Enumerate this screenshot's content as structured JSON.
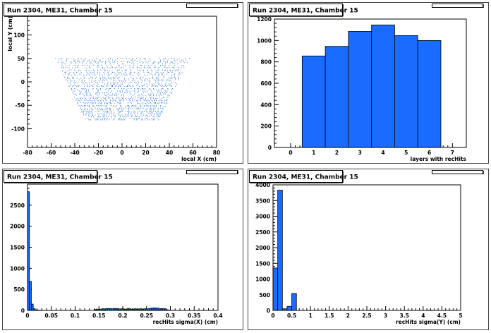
{
  "colors": {
    "fill": "#1a6bff",
    "points": "#2a6fdf",
    "frame": "#000000",
    "background": "#ffffff"
  },
  "chart_data": [
    {
      "type": "scatter",
      "title": "Run 2304, ME31, Chamber 15",
      "xlabel": "local X (cm)",
      "ylabel": "local Y (cm)",
      "xlim": [
        -80,
        80
      ],
      "ylim": [
        -140,
        140
      ],
      "xticks": [
        -80,
        -60,
        -40,
        -20,
        0,
        20,
        40,
        60,
        80
      ],
      "yticks": [
        -100,
        -50,
        0,
        50,
        100
      ],
      "region": {
        "y_top": 52,
        "y_bottom": -82,
        "x_half_width_top": 57,
        "x_half_width_bottom": 31
      },
      "point_rows": 44,
      "points_per_row": 42
    },
    {
      "type": "bar",
      "title": "Run 2304, ME31, Chamber 15",
      "xlabel": "layers with recHits",
      "ylabel": "",
      "xlim": [
        -0.7,
        7.6
      ],
      "ylim": [
        0,
        1200
      ],
      "xticks": [
        0,
        1,
        2,
        3,
        4,
        5,
        6,
        7
      ],
      "yticks": [
        0,
        200,
        400,
        600,
        800,
        1000,
        1200
      ],
      "categories": [
        1,
        2,
        3,
        4,
        5,
        6
      ],
      "bin_width": 1,
      "values": [
        855,
        945,
        1085,
        1145,
        1045,
        1000
      ]
    },
    {
      "type": "bar",
      "title": "Run 2304, ME31, Chamber 15",
      "xlabel": "recHits sigma(X) (cm)",
      "ylabel": "",
      "xlim": [
        0,
        0.4
      ],
      "ylim": [
        0,
        3000
      ],
      "xticks": [
        0,
        0.05,
        0.1,
        0.15,
        0.2,
        0.25,
        0.3,
        0.35,
        0.4
      ],
      "xtick_labels": [
        "0",
        "0.05",
        "0.1",
        "0.15",
        "0.2",
        "0.25",
        "0.3",
        "0.35",
        "0.4"
      ],
      "yticks": [
        0,
        500,
        1000,
        1500,
        2000,
        2500
      ],
      "bin_start": 0,
      "bin_width": 0.004,
      "values": [
        2820,
        690,
        150,
        40,
        15,
        8,
        5,
        3,
        2,
        2,
        1,
        1,
        1,
        1,
        1,
        1,
        1,
        1,
        1,
        1,
        1,
        1,
        1,
        1,
        2,
        3,
        1,
        1,
        4,
        1,
        1,
        1,
        1,
        1,
        1,
        20,
        30,
        25,
        30,
        40,
        35,
        45,
        40,
        45,
        40,
        45,
        45,
        40,
        35,
        40,
        35,
        30,
        35,
        45,
        30,
        30,
        40,
        30,
        35,
        40,
        30,
        40,
        35,
        40,
        50,
        55,
        60,
        55,
        55,
        40,
        45,
        40,
        35,
        15,
        5,
        3,
        2,
        1,
        1,
        1
      ]
    },
    {
      "type": "bar",
      "title": "Run 2304, ME31, Chamber 15",
      "xlabel": "recHits sigma(Y) (cm)",
      "ylabel": "",
      "xlim": [
        0,
        5
      ],
      "ylim": [
        0,
        4000
      ],
      "xticks": [
        0,
        0.5,
        1,
        1.5,
        2,
        2.5,
        3,
        3.5,
        4,
        4.5,
        5
      ],
      "xtick_labels": [
        "0",
        "0.5",
        "1",
        "1.5",
        "2",
        "2.5",
        "3",
        "3.5",
        "4",
        "4.5",
        "5"
      ],
      "yticks": [
        0,
        500,
        1000,
        1500,
        2000,
        2500,
        3000,
        3500,
        4000
      ],
      "bin_start": 0,
      "bin_width": 0.125,
      "values": [
        1350,
        3830,
        50,
        130,
        540,
        0,
        0,
        0,
        0,
        0,
        0,
        0,
        2,
        2,
        1,
        0,
        0,
        0,
        2,
        2,
        5,
        0,
        0,
        0,
        0,
        0,
        0,
        0,
        3,
        0,
        0,
        0,
        0,
        8,
        1,
        0,
        0,
        0,
        0,
        0
      ]
    }
  ]
}
